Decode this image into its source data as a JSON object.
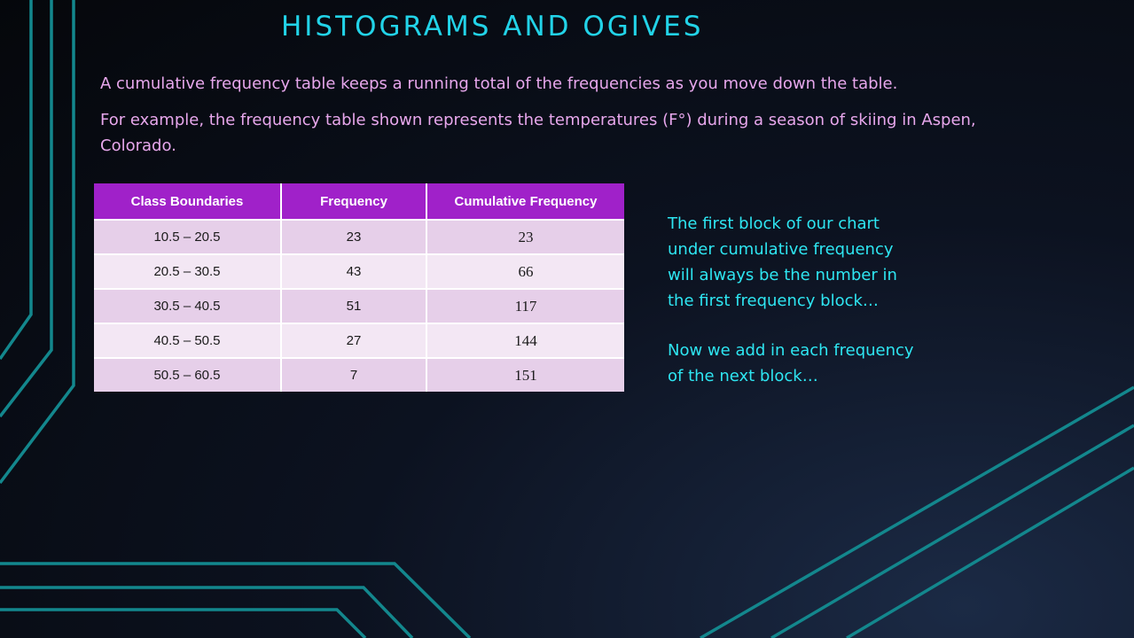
{
  "slide": {
    "title": "HISTOGRAMS AND OGIVES",
    "intro_1": "A cumulative frequency table keeps a running total of the frequencies as you move down the table.",
    "intro_2": "For example, the frequency table shown represents the temperatures (F°) during a season of skiing in Aspen, Colorado.",
    "note_1": "The first block of our chart\nunder cumulative frequency\nwill always be the number in\nthe first frequency block…",
    "note_2": "Now we add in each frequency\nof the next block…"
  },
  "table": {
    "headers": [
      "Class Boundaries",
      "Frequency",
      "Cumulative  Frequency"
    ],
    "rows": [
      [
        "10.5 – 20.5",
        "23",
        "23"
      ],
      [
        "20.5 – 30.5",
        "43",
        "66"
      ],
      [
        "30.5 – 40.5",
        "51",
        "117"
      ],
      [
        "40.5 – 50.5",
        "27",
        "144"
      ],
      [
        "50.5 – 60.5",
        "7",
        "151"
      ]
    ]
  },
  "colors": {
    "title": "#22d3e8",
    "intro_text": "#e7a7ec",
    "note_text": "#2ee6f2",
    "header_bg": "#a021c9",
    "row_dark": "#e6cfe9",
    "row_light": "#f3e7f4",
    "circuit_lines": "#13878d"
  }
}
